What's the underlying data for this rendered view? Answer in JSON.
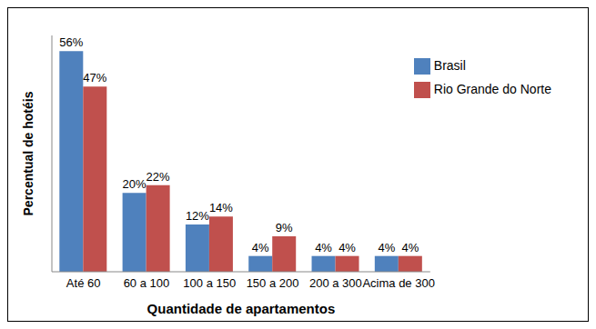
{
  "chart_data": {
    "type": "bar",
    "x_label": "Quantidade de apartamentos",
    "y_label": "Percentual de hotéis",
    "categories": [
      "Até 60",
      "60 a 100",
      "100 a 150",
      "150 a 200",
      "200 a 300",
      "Acima de 300"
    ],
    "series": [
      {
        "name": "Brasil",
        "color": "#4f81bd",
        "values": [
          56,
          20,
          12,
          4,
          4,
          4
        ],
        "value_labels": [
          "56%",
          "20%",
          "12%",
          "4%",
          "4%",
          "4%"
        ]
      },
      {
        "name": "Rio Grande do Norte",
        "color": "#c0504d",
        "values": [
          47,
          22,
          14,
          9,
          4,
          4
        ],
        "value_labels": [
          "47%",
          "22%",
          "14%",
          "9%",
          "4%",
          "4%"
        ]
      }
    ],
    "ylim": [
      0,
      60
    ],
    "grid": false,
    "legend": "upper right",
    "data_labels": true,
    "tick_labels": "x"
  }
}
